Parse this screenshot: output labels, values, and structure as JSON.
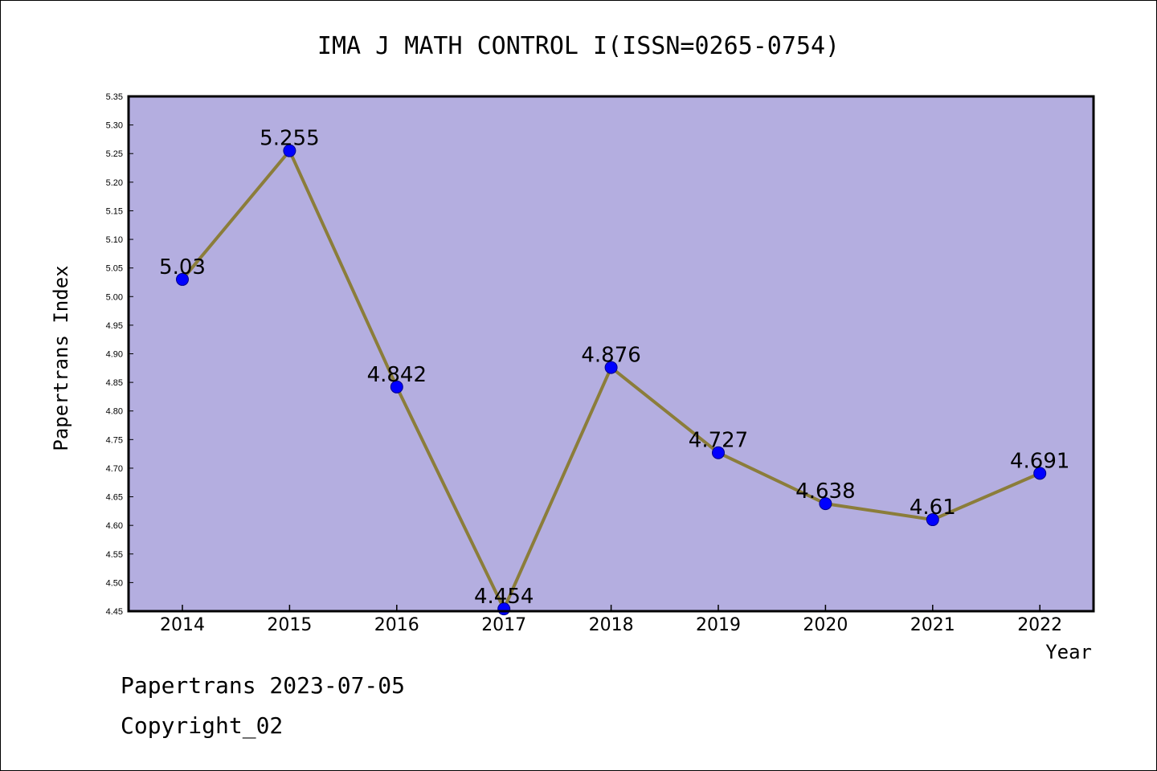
{
  "footer": {
    "line1": "Papertrans 2023-07-05",
    "line2": "Copyright_02"
  },
  "colors": {
    "plot_background": "#b4aee0",
    "line": "#8b7d3a",
    "marker": "#0000ff",
    "marker_edge": "#00008b"
  },
  "chart_data": {
    "type": "line",
    "title": "IMA J MATH CONTROL I(ISSN=0265-0754)",
    "xlabel": "Year",
    "ylabel": "Papertrans Index",
    "categories": [
      "2014",
      "2015",
      "2016",
      "2017",
      "2018",
      "2019",
      "2020",
      "2021",
      "2022"
    ],
    "series": [
      {
        "values": [
          5.03,
          5.255,
          4.842,
          4.454,
          4.876,
          4.727,
          4.638,
          4.61,
          4.691
        ]
      }
    ],
    "data_labels": [
      "5.03",
      "5.255",
      "4.842",
      "4.454",
      "4.876",
      "4.727",
      "4.638",
      "4.61",
      "4.691"
    ],
    "ylim": [
      4.45,
      5.35
    ],
    "yticks": [
      "4.45",
      "4.50",
      "4.55",
      "4.60",
      "4.65",
      "4.70",
      "4.75",
      "4.80",
      "4.85",
      "4.90",
      "4.95",
      "5.00",
      "5.05",
      "5.10",
      "5.15",
      "5.20",
      "5.25",
      "5.30",
      "5.35"
    ],
    "grid": false,
    "legend": "none"
  }
}
